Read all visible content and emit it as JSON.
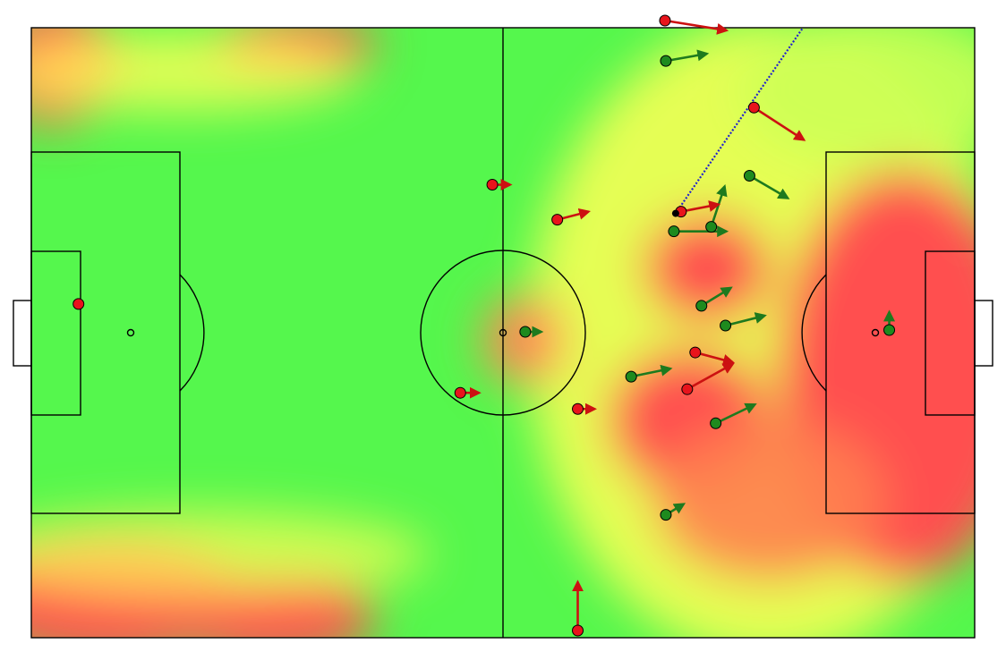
{
  "colors": {
    "team_red": "#e8141c",
    "team_green": "#1e8a1e",
    "arrow_red": "#cc1111",
    "arrow_green": "#1e7a1e",
    "ball_path": "#2222cc",
    "line": "#000000",
    "heat_low": "#55f74d",
    "heat_mid": "#ffff55",
    "heat_high": "#ff5050"
  },
  "players": {
    "red": [
      {
        "x": -47.7,
        "y": 3.2,
        "vx": 0,
        "vy": 0
      },
      {
        "x": -1.2,
        "y": 16.5,
        "vx": 2.0,
        "vy": 0
      },
      {
        "x": 6.1,
        "y": 12.6,
        "vx": 3.5,
        "vy": 0.9
      },
      {
        "x": -4.8,
        "y": -6.7,
        "vx": 2.1,
        "vy": 0
      },
      {
        "x": 8.4,
        "y": -8.5,
        "vx": 1.9,
        "vy": 0
      },
      {
        "x": 8.4,
        "y": -33.2,
        "vx": 0,
        "vy": 5.4
      },
      {
        "x": 18.2,
        "y": 34.8,
        "vx": 6.9,
        "vy": -1.1
      },
      {
        "x": 28.2,
        "y": 25.1,
        "vx": 5.6,
        "vy": -3.6
      },
      {
        "x": 20.0,
        "y": 13.5,
        "vx": 4.2,
        "vy": 0.8
      },
      {
        "x": 21.6,
        "y": -2.2,
        "vx": 4.2,
        "vy": -1.1
      },
      {
        "x": 20.7,
        "y": -6.3,
        "vx": 5.1,
        "vy": 2.8
      }
    ],
    "green": [
      {
        "x": 43.4,
        "y": 0.3,
        "vx": 0,
        "vy": 2.0
      },
      {
        "x": 2.5,
        "y": 0.1,
        "vx": 1.8,
        "vy": 0
      },
      {
        "x": 14.4,
        "y": -4.9,
        "vx": 4.4,
        "vy": 0.9
      },
      {
        "x": 18.3,
        "y": 30.3,
        "vx": 4.6,
        "vy": 0.8
      },
      {
        "x": 27.7,
        "y": 17.5,
        "vx": 4.3,
        "vy": -2.5
      },
      {
        "x": 23.4,
        "y": 11.8,
        "vx": 1.5,
        "vy": 4.5
      },
      {
        "x": 19.2,
        "y": 11.3,
        "vx": 5.9,
        "vy": 0
      },
      {
        "x": 22.3,
        "y": 3.0,
        "vx": 3.3,
        "vy": 2.0
      },
      {
        "x": 25.0,
        "y": 0.8,
        "vx": 4.4,
        "vy": 1.1
      },
      {
        "x": 23.9,
        "y": -10.1,
        "vx": 4.4,
        "vy": 2.1
      },
      {
        "x": 18.3,
        "y": -20.3,
        "vx": 2.0,
        "vy": 1.2
      }
    ]
  },
  "ball": {
    "x": 19.4,
    "y": 13.3
  },
  "ball_path_end": {
    "x": 33.7,
    "y": 34.0
  }
}
